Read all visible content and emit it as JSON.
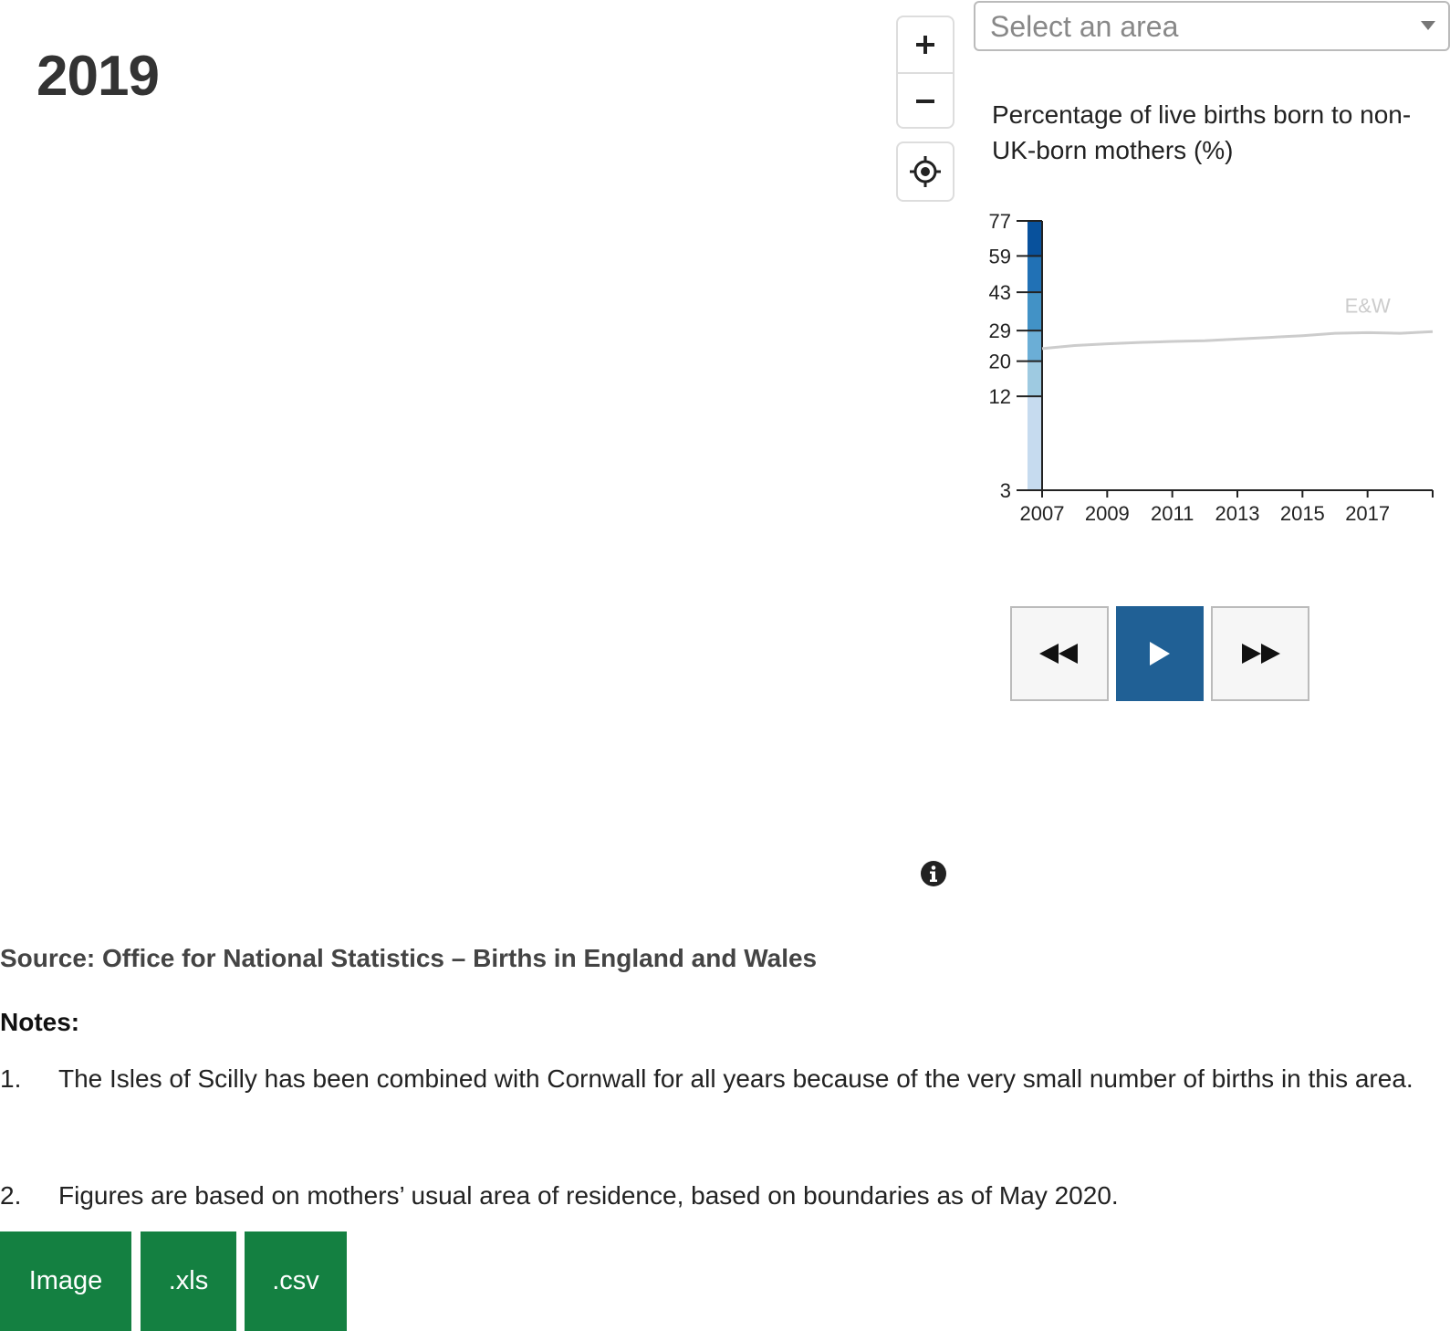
{
  "year": "2019",
  "area_select": {
    "placeholder": "Select an area"
  },
  "chart_heading": "Percentage of live births born to non-UK-born mothers (%)",
  "chart_data": {
    "type": "line",
    "legend_scale": {
      "breaks": [
        3,
        12,
        20,
        29,
        43,
        59,
        77
      ],
      "colors": [
        "#c6dbef",
        "#9ecae1",
        "#6baed6",
        "#4292c6",
        "#2171b5",
        "#08519c"
      ]
    },
    "x_ticks": [
      "2007",
      "2009",
      "2011",
      "2013",
      "2015",
      "2017"
    ],
    "series": [
      {
        "name": "E&W",
        "x": [
          2007,
          2008,
          2009,
          2010,
          2011,
          2012,
          2013,
          2014,
          2015,
          2016,
          2017,
          2018,
          2019
        ],
        "values": [
          23.7,
          24.6,
          25.1,
          25.5,
          25.8,
          26.0,
          26.5,
          27.0,
          27.5,
          28.2,
          28.4,
          28.2,
          28.7
        ],
        "color": "#cccccc"
      }
    ],
    "xlim": [
      2007,
      2019
    ],
    "ylim": [
      3,
      77
    ]
  },
  "playback": {
    "back": "rewind",
    "play": "play",
    "forward": "fast-forward"
  },
  "source": "Source: Office for National Statistics – Births in England and Wales",
  "notes": {
    "title": "Notes:",
    "items": [
      {
        "num": "1.",
        "text": "The Isles of Scilly has been combined with Cornwall for all years because of the very small number of births in this area."
      },
      {
        "num": "2.",
        "text": "Figures are based on mothers’ usual area of residence, based on boundaries as of May 2020."
      }
    ]
  },
  "downloads": {
    "image": "Image",
    "xls": ".xls",
    "csv": ".csv"
  },
  "colors": {
    "accent": "#206095",
    "download": "#148041"
  }
}
